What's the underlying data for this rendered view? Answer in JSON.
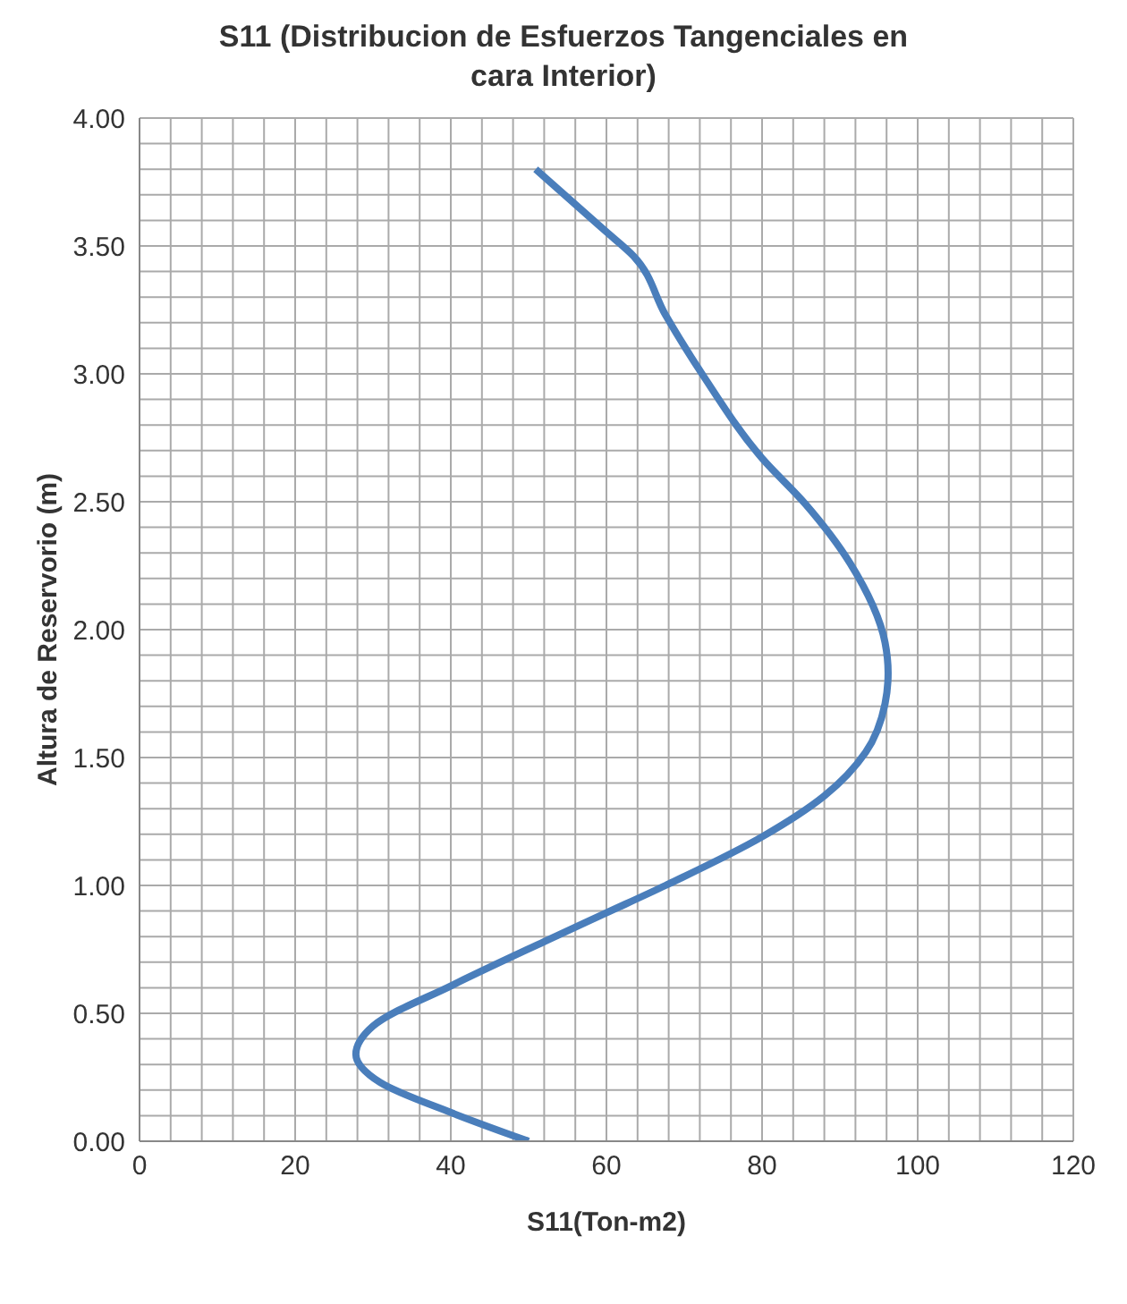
{
  "chart_data": {
    "type": "line",
    "title": "S11 (Distribucion de Esfuerzos Tangenciales en cara Interior)",
    "xlabel": "S11(Ton-m2)",
    "ylabel": "Altura de Reservorio (m)",
    "x": [
      50.0,
      40.2,
      30.9,
      27.8,
      30.0,
      40.2,
      52.0,
      59.8,
      67.6,
      80.0,
      88.0,
      93.3,
      95.8,
      96.2,
      95.8,
      91.3,
      85.6,
      80.0,
      72.5,
      67.6,
      63.5,
      59.8,
      50.9
    ],
    "series": [
      {
        "color": "#4a7ebb",
        "values": [
          0,
          0.11,
          0.23,
          0.34,
          0.45,
          0.61,
          0.78,
          0.89,
          1.0,
          1.19,
          1.35,
          1.52,
          1.71,
          1.83,
          1.95,
          2.26,
          2.49,
          2.67,
          2.99,
          3.23,
          3.46,
          3.56,
          3.8
        ]
      }
    ],
    "xlim": [
      0,
      120
    ],
    "xticks": [
      0,
      {
        "value": 4,
        "label": null
      },
      {
        "value": 8,
        "label": null
      },
      {
        "value": 12,
        "label": null
      },
      {
        "value": 16,
        "label": null
      },
      20,
      {
        "value": 24,
        "label": null
      },
      {
        "value": 28,
        "label": null
      },
      {
        "value": 32,
        "label": null
      },
      {
        "value": 36,
        "label": null
      },
      40,
      {
        "value": 44,
        "label": null
      },
      {
        "value": 48,
        "label": null
      },
      {
        "value": 52,
        "label": null
      },
      {
        "value": 56,
        "label": null
      },
      60,
      {
        "value": 64,
        "label": null
      },
      {
        "value": 68,
        "label": null
      },
      {
        "value": 72,
        "label": null
      },
      {
        "value": 76,
        "label": null
      },
      80,
      {
        "value": 84,
        "label": null
      },
      {
        "value": 88,
        "label": null
      },
      {
        "value": 92,
        "label": null
      },
      {
        "value": 96,
        "label": null
      },
      100,
      {
        "value": 104,
        "label": null
      },
      {
        "value": 108,
        "label": null
      },
      {
        "value": 112,
        "label": null
      },
      {
        "value": 116,
        "label": null
      },
      120
    ],
    "ylim": [
      0,
      4
    ],
    "yticks": [
      {
        "value": 0,
        "label": "0.00"
      },
      {
        "value": 0.1,
        "label": null
      },
      {
        "value": 0.2,
        "label": null
      },
      {
        "value": 0.3,
        "label": null
      },
      {
        "value": 0.4,
        "label": null
      },
      {
        "value": 0.5,
        "label": "0.50"
      },
      {
        "value": 0.6,
        "label": null
      },
      {
        "value": 0.7,
        "label": null
      },
      {
        "value": 0.8,
        "label": null
      },
      {
        "value": 0.9,
        "label": null
      },
      {
        "value": 1,
        "label": "1.00"
      },
      {
        "value": 1.1,
        "label": null
      },
      {
        "value": 1.2,
        "label": null
      },
      {
        "value": 1.3,
        "label": null
      },
      {
        "value": 1.4,
        "label": null
      },
      {
        "value": 1.5,
        "label": "1.50"
      },
      {
        "value": 1.6,
        "label": null
      },
      {
        "value": 1.7,
        "label": null
      },
      {
        "value": 1.8,
        "label": null
      },
      {
        "value": 1.9,
        "label": null
      },
      {
        "value": 2,
        "label": "2.00"
      },
      {
        "value": 2.1,
        "label": null
      },
      {
        "value": 2.2,
        "label": null
      },
      {
        "value": 2.3,
        "label": null
      },
      {
        "value": 2.4,
        "label": null
      },
      {
        "value": 2.5,
        "label": "2.50"
      },
      {
        "value": 2.6,
        "label": null
      },
      {
        "value": 2.7,
        "label": null
      },
      {
        "value": 2.8,
        "label": null
      },
      {
        "value": 2.9,
        "label": null
      },
      {
        "value": 3,
        "label": "3.00"
      },
      {
        "value": 3.1,
        "label": null
      },
      {
        "value": 3.2,
        "label": null
      },
      {
        "value": 3.3,
        "label": null
      },
      {
        "value": 3.4,
        "label": null
      },
      {
        "value": 3.5,
        "label": "3.50"
      },
      {
        "value": 3.6,
        "label": null
      },
      {
        "value": 3.7,
        "label": null
      },
      {
        "value": 3.8,
        "label": null
      },
      {
        "value": 3.9,
        "label": null
      },
      {
        "value": 4,
        "label": "4.00"
      }
    ],
    "grid": true,
    "marker": "none",
    "line_style": "solid"
  }
}
